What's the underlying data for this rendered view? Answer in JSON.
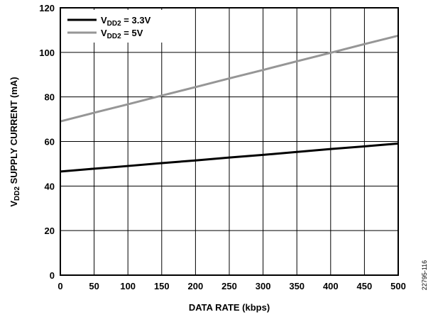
{
  "chart_data": {
    "type": "line",
    "x": [
      0,
      50,
      100,
      150,
      200,
      250,
      300,
      350,
      400,
      450,
      500
    ],
    "xlim": [
      0,
      500
    ],
    "ylim": [
      0,
      120
    ],
    "xticks": [
      0,
      50,
      100,
      150,
      200,
      250,
      300,
      350,
      400,
      450,
      500
    ],
    "yticks": [
      0,
      20,
      40,
      60,
      80,
      100,
      120
    ],
    "xlabel": "DATA RATE (kbps)",
    "ylabel": {
      "prefix": "V",
      "sub": "DD2",
      "rest": " SUPPLY CURRENT (mA)"
    },
    "grid": true,
    "legend_position": "top-left",
    "series": [
      {
        "name": {
          "prefix": "V",
          "sub": "DD2",
          "rest": " = 3.3V"
        },
        "color": "#000000",
        "values": [
          46.5,
          47.8,
          49.0,
          50.3,
          51.5,
          52.8,
          54.0,
          55.3,
          56.6,
          57.8,
          59.1
        ]
      },
      {
        "name": {
          "prefix": "V",
          "sub": "DD2",
          "rest": " = 5V"
        },
        "color": "#969696",
        "values": [
          69,
          72.9,
          76.7,
          80.6,
          84.4,
          88.3,
          92.1,
          96.0,
          99.8,
          103.7,
          107.5
        ]
      }
    ]
  },
  "figure_id": "22795-116"
}
